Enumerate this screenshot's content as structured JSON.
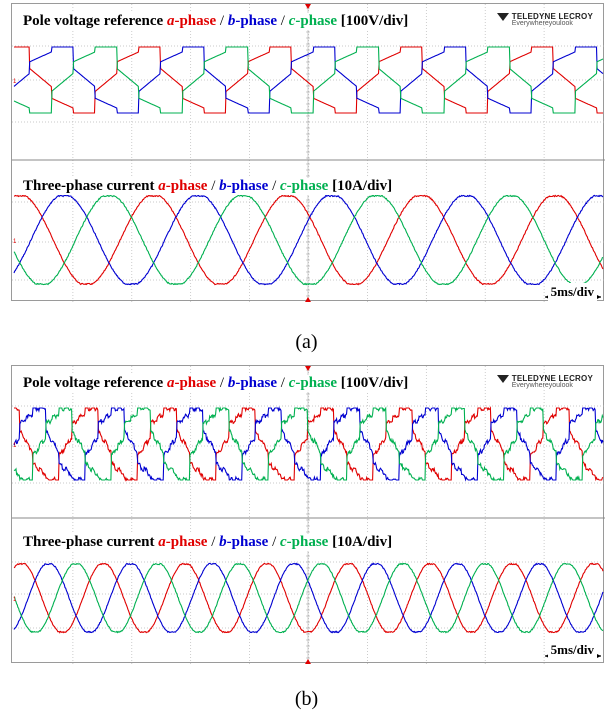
{
  "figure": {
    "panels": [
      {
        "caption": "(a)",
        "voltage_title": {
          "prefix": "Pole voltage reference ",
          "a": "a",
          "a_suffix": "-phase",
          "sep1": " / ",
          "b": "b",
          "b_suffix": "-phase",
          "sep2": " / ",
          "c": "c",
          "c_suffix": "-phase",
          "scale": "  [100V/div]"
        },
        "current_title": {
          "prefix": "Three-phase current ",
          "a": "a",
          "a_suffix": "-phase",
          "sep1": " / ",
          "b": "b",
          "b_suffix": "-phase",
          "sep2": " / ",
          "c": "c",
          "c_suffix": "-phase",
          "scale": "  [10A/div]"
        },
        "logo": {
          "brand": "TELEDYNE LECROY",
          "slogan": "Everywhereyoulook"
        },
        "time_div_label": "5ms/div"
      },
      {
        "caption": "(b)",
        "voltage_title": {
          "prefix": "Pole voltage reference ",
          "a": "a",
          "a_suffix": "-phase",
          "sep1": " / ",
          "b": "b",
          "b_suffix": "-phase",
          "sep2": " / ",
          "c": "c",
          "c_suffix": "-phase",
          "scale": "  [100V/div]"
        },
        "current_title": {
          "prefix": "Three-phase current ",
          "a": "a",
          "a_suffix": "-phase",
          "sep1": " / ",
          "b": "b",
          "b_suffix": "-phase",
          "sep2": " / ",
          "c": "c",
          "c_suffix": "-phase",
          "scale": "  [10A/div]"
        },
        "logo": {
          "brand": "TELEDYNE LECROY",
          "slogan": "Everywhereyoulook"
        },
        "time_div_label": "5ms/div"
      }
    ],
    "colors": {
      "a_phase": "#e00000",
      "b_phase": "#0000d0",
      "c_phase": "#00b050",
      "grid": "#b8b8b8",
      "frame": "#9a9a9a"
    }
  },
  "chart_data": [
    {
      "type": "line",
      "title": "Pole voltage reference a-phase / b-phase / c-phase [100V/div]",
      "x_unit": "ms",
      "x_range": [
        0,
        50
      ],
      "x_div": 5,
      "y_unit": "div",
      "waveform": "stepped pole voltage reference with ramp segments, three phases 120 degrees apart",
      "electrical_periods": 4.5,
      "level_high_div": 1.0,
      "level_low_div": -1.0,
      "series": [
        {
          "name": "a-phase"
        },
        {
          "name": "b-phase"
        },
        {
          "name": "c-phase"
        }
      ]
    },
    {
      "type": "line",
      "title": "Three-phase current a-phase / b-phase / c-phase [10A/div]",
      "x_unit": "ms",
      "x_range": [
        0,
        50
      ],
      "x_div": 5,
      "y_unit": "div",
      "waveform": "sinusoidal",
      "electrical_periods": 4.4,
      "amplitude_div": 1.3,
      "series": [
        {
          "name": "a-phase"
        },
        {
          "name": "b-phase"
        },
        {
          "name": "c-phase"
        }
      ]
    },
    {
      "type": "line",
      "title": "Pole voltage reference a-phase / b-phase / c-phase [100V/div]",
      "x_unit": "ms",
      "x_range": [
        0,
        50
      ],
      "x_div": 5,
      "y_unit": "div",
      "waveform": "stepped pole voltage reference with ripple, three phases 120 degrees apart",
      "electrical_periods": 7.5,
      "level_high_div": 1.0,
      "level_low_div": -1.0,
      "series": [
        {
          "name": "a-phase"
        },
        {
          "name": "b-phase"
        },
        {
          "name": "c-phase"
        }
      ]
    },
    {
      "type": "line",
      "title": "Three-phase current a-phase / b-phase / c-phase [10A/div]",
      "x_unit": "ms",
      "x_range": [
        0,
        50
      ],
      "x_div": 5,
      "y_unit": "div",
      "waveform": "sinusoidal",
      "electrical_periods": 7.2,
      "amplitude_div": 1.1,
      "series": [
        {
          "name": "a-phase"
        },
        {
          "name": "b-phase"
        },
        {
          "name": "c-phase"
        }
      ]
    }
  ]
}
